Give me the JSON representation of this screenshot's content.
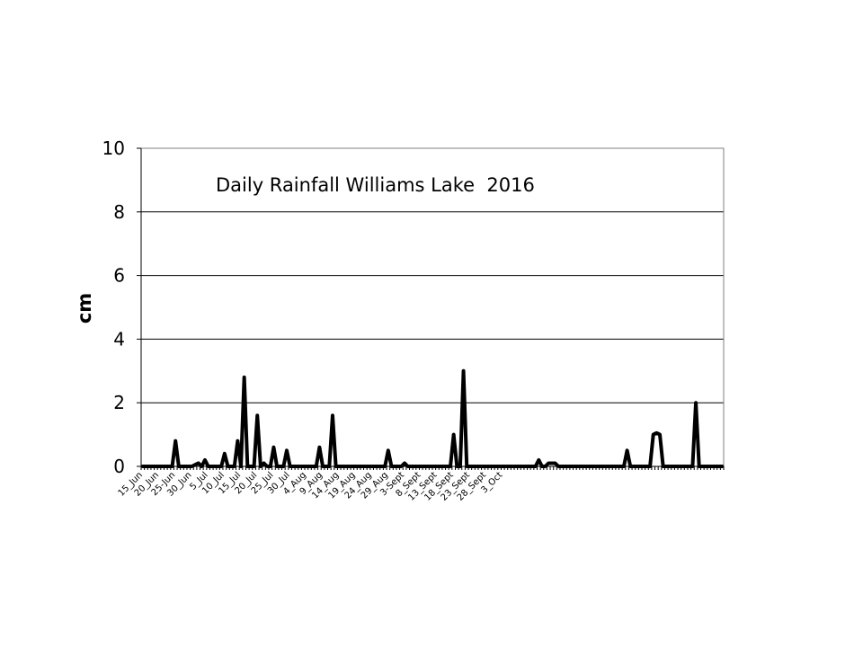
{
  "chart_data": {
    "type": "line",
    "title": "Daily Rainfall Williams Lake  2016",
    "xlabel": "",
    "ylabel": "cm",
    "ylim": [
      0,
      10
    ],
    "yticks": [
      "0",
      "2",
      "4",
      "6",
      "8",
      "10"
    ],
    "grid": "horizontal",
    "x_tick_labels": [
      "15_Jun",
      "20_Jun",
      "25-Jun",
      "30_Jun",
      "5_Jul",
      "10_Jul",
      "15_Jul",
      "20_Jul",
      "25_Jul",
      "30_Jul",
      "4_Aug",
      "9_Aug",
      "14_Aug",
      "19_Aug",
      "24_Aug",
      "29_Aug",
      "3-Sept",
      "8_Sept",
      "13_Sept",
      "18_Sept",
      "23_Sept",
      "28_Sept",
      "3_Oct"
    ],
    "start_date": "2016-06-15",
    "series": [
      {
        "values": [
          0,
          0,
          0,
          0,
          0,
          0,
          0,
          0,
          0,
          0,
          0.8,
          0,
          0,
          0,
          0,
          0,
          0.05,
          0.1,
          0,
          0.2,
          0,
          0,
          0,
          0,
          0,
          0.4,
          0,
          0,
          0,
          0.8,
          0,
          2.8,
          0,
          0,
          0,
          1.6,
          0,
          0.1,
          0,
          0,
          0.6,
          0,
          0,
          0,
          0.5,
          0,
          0,
          0,
          0,
          0,
          0,
          0,
          0,
          0,
          0.6,
          0,
          0,
          0,
          1.6,
          0,
          0,
          0,
          0,
          0,
          0,
          0,
          0,
          0,
          0,
          0,
          0,
          0,
          0,
          0,
          0,
          0.5,
          0,
          0,
          0,
          0,
          0.1,
          0,
          0,
          0,
          0,
          0,
          0,
          0,
          0,
          0,
          0,
          0,
          0,
          0,
          0,
          1.0,
          0,
          0,
          3.0,
          0,
          0,
          0,
          0,
          0,
          0,
          0,
          0,
          0,
          0,
          0,
          0,
          0,
          0,
          0,
          0,
          0,
          0,
          0,
          0,
          0,
          0,
          0.2,
          0,
          0,
          0.1,
          0.1,
          0.1,
          0,
          0,
          0,
          0,
          0,
          0,
          0,
          0,
          0,
          0,
          0,
          0,
          0,
          0,
          0,
          0,
          0,
          0,
          0,
          0,
          0,
          0.5,
          0,
          0,
          0,
          0,
          0,
          0,
          0,
          1.0,
          1.05,
          1.0,
          0,
          0,
          0,
          0,
          0,
          0,
          0,
          0,
          0,
          0,
          2.0,
          0,
          0,
          0,
          0,
          0,
          0,
          0,
          0
        ]
      }
    ]
  }
}
